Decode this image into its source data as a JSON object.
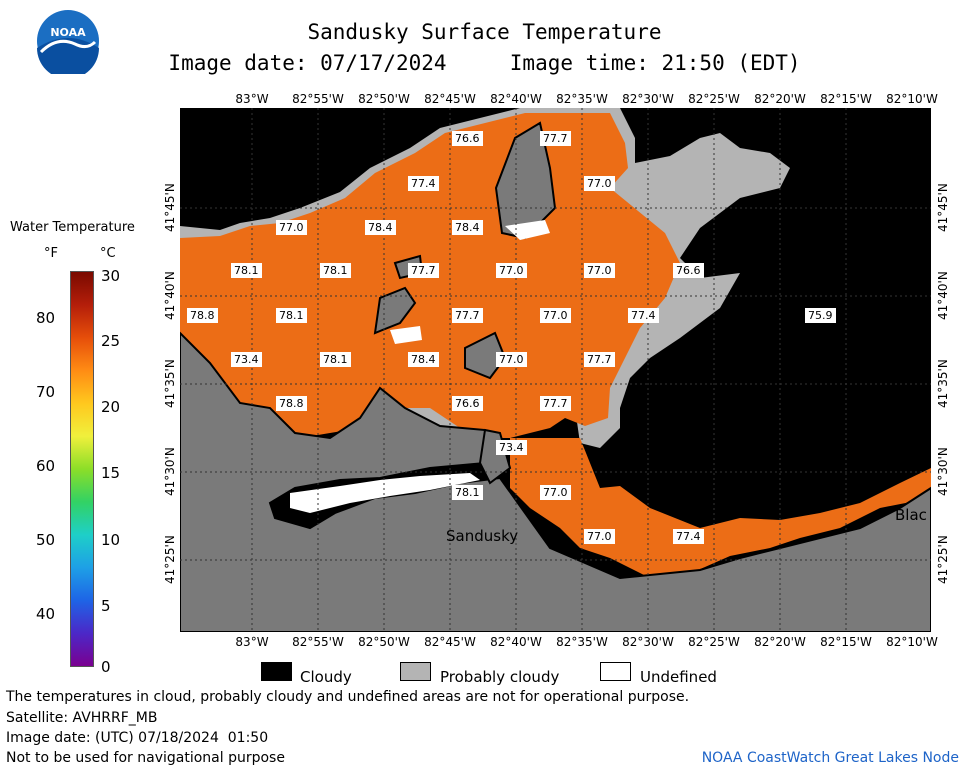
{
  "header": {
    "title": "Sandusky Surface Temperature",
    "subtitle": "Image date: 07/17/2024     Image time: 21:50 (EDT)"
  },
  "logo": {
    "text": "NOAA",
    "icon": "noaa-logo-icon"
  },
  "colorbar": {
    "title": "Water Temperature",
    "unit_f": "°F",
    "unit_c": "°C",
    "ticks_f": [
      "80",
      "70",
      "60",
      "50",
      "40"
    ],
    "ticks_c": [
      "30",
      "25",
      "20",
      "15",
      "10",
      "5",
      "0"
    ]
  },
  "axes": {
    "lon_labels": [
      "83°W",
      "82°55'W",
      "82°50'W",
      "82°45'W",
      "82°40'W",
      "82°35'W",
      "82°30'W",
      "82°25'W",
      "82°20'W",
      "82°15'W",
      "82°10'W"
    ],
    "lat_labels": [
      "41°45'N",
      "41°40'N",
      "41°35'N",
      "41°30'N",
      "41°25'N"
    ]
  },
  "temps": [
    "76.6",
    "77.7",
    "77.4",
    "77.0",
    "77.0",
    "78.4",
    "78.4",
    "78.1",
    "78.1",
    "77.7",
    "77.0",
    "77.0",
    "76.6",
    "78.8",
    "78.1",
    "77.7",
    "77.0",
    "77.4",
    "75.9",
    "73.4",
    "78.1",
    "78.4",
    "77.0",
    "77.7",
    "78.8",
    "76.6",
    "77.7",
    "73.4",
    "78.1",
    "77.0",
    "77.0",
    "77.4"
  ],
  "places": {
    "sandusky": "Sandusky",
    "blac": "Blac"
  },
  "legend": {
    "cloudy": "Cloudy",
    "probably_cloudy": "Probably cloudy",
    "undefined": "Undefined"
  },
  "colors": {
    "water": "#ec6d16",
    "land": "#7a7a7a",
    "cloud": "#000000",
    "probably_cloud": "#b4b4b4"
  },
  "footer": {
    "line1": "The temperatures in cloud, probably cloudy and undefined areas are not for operational purpose.",
    "line2": "Satellite: AVHRRF_MB",
    "line3": "Image date: (UTC) 07/18/2024  01:50",
    "line4": "Not to be used for navigational purpose",
    "credit": "NOAA CoastWatch Great Lakes Node"
  }
}
